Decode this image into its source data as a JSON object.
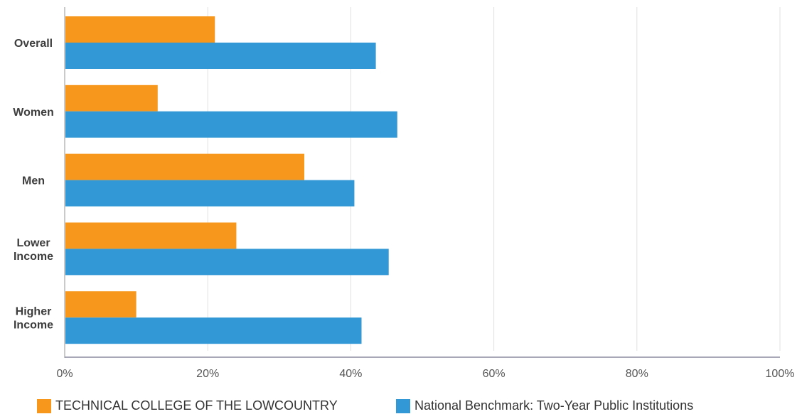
{
  "chart_data": {
    "type": "bar",
    "orientation": "horizontal",
    "categories": [
      {
        "lines": [
          "Overall"
        ]
      },
      {
        "lines": [
          "Women"
        ]
      },
      {
        "lines": [
          "Men"
        ]
      },
      {
        "lines": [
          "Lower",
          "Income"
        ]
      },
      {
        "lines": [
          "Higher",
          "Income"
        ]
      }
    ],
    "series": [
      {
        "name": "TECHNICAL COLLEGE OF THE LOWCOUNTRY",
        "color": "#f7981d",
        "values": [
          21,
          13,
          33.5,
          24,
          10
        ]
      },
      {
        "name": "National Benchmark: Two-Year Public Institutions",
        "color": "#3399d6",
        "values": [
          43.5,
          46.5,
          40.5,
          45.3,
          41.5
        ]
      }
    ],
    "xlim": [
      0,
      100
    ],
    "xticks": [
      "0%",
      "20%",
      "40%",
      "60%",
      "80%",
      "100%"
    ],
    "grid": true,
    "legend_position": "bottom"
  }
}
